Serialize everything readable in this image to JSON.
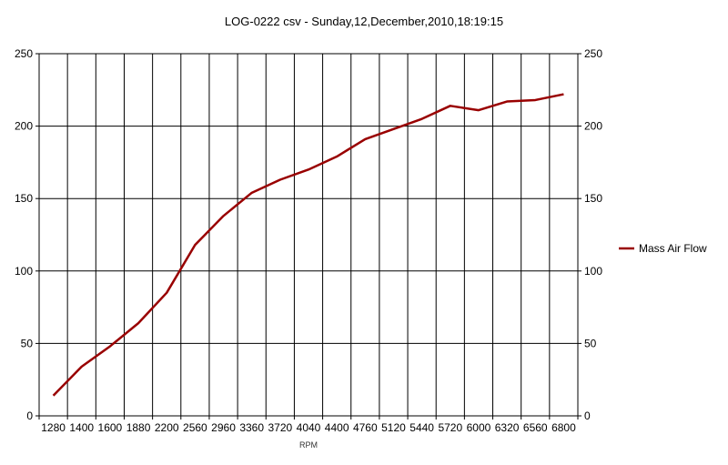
{
  "chart_data": {
    "type": "line",
    "title": "LOG-0222 csv - Sunday,12,December,2010,18:19:15",
    "xlabel": "RPM",
    "ylabel": "",
    "categories": [
      "1280",
      "1400",
      "1600",
      "1880",
      "2200",
      "2560",
      "2960",
      "3360",
      "3720",
      "4040",
      "4400",
      "4760",
      "5120",
      "5440",
      "5720",
      "6000",
      "6320",
      "6560",
      "6800"
    ],
    "series": [
      {
        "name": "Mass Air Flow",
        "color": "#990000",
        "values": [
          14,
          34,
          48,
          64,
          85,
          118,
          138,
          154,
          163,
          170,
          179,
          191,
          198,
          205,
          214,
          211,
          217,
          218,
          222
        ]
      }
    ],
    "ylim": [
      0,
      250
    ],
    "yticks": [
      0,
      50,
      100,
      150,
      200,
      250
    ],
    "grid": true,
    "legend": "right",
    "secondary_y_axis": true
  }
}
